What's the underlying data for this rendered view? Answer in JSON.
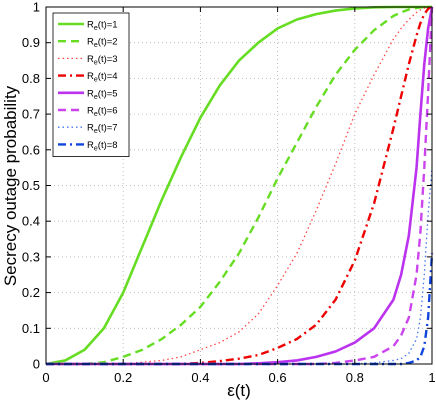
{
  "chart_data": {
    "type": "line",
    "title": "",
    "xlabel": "ε(t)",
    "ylabel": "Secrecy outage probability",
    "xlim": [
      0,
      1
    ],
    "ylim": [
      0,
      1
    ],
    "grid": true,
    "legend_position": "top-left",
    "x_ticks": [
      "0",
      "0.2",
      "0.4",
      "0.6",
      "0.8",
      "1"
    ],
    "y_ticks": [
      "0",
      "0.1",
      "0.2",
      "0.3",
      "0.4",
      "0.5",
      "0.6",
      "0.7",
      "0.8",
      "0.9",
      "1"
    ],
    "x": [
      0,
      0.05,
      0.1,
      0.15,
      0.2,
      0.25,
      0.3,
      0.35,
      0.4,
      0.45,
      0.5,
      0.55,
      0.6,
      0.65,
      0.7,
      0.75,
      0.8,
      0.85,
      0.9,
      0.92,
      0.94,
      0.96,
      0.97,
      0.98,
      0.99,
      1.0
    ],
    "series": [
      {
        "name_main": "R",
        "name_sub": "e",
        "name_rest": "(t)=1",
        "color": "#66dd22",
        "dash": "solid",
        "values": [
          0,
          0.01,
          0.04,
          0.1,
          0.2,
          0.33,
          0.46,
          0.58,
          0.69,
          0.78,
          0.85,
          0.9,
          0.94,
          0.965,
          0.98,
          0.99,
          0.996,
          0.999,
          1,
          1,
          1,
          1,
          1,
          1,
          1,
          1
        ]
      },
      {
        "name_main": "R",
        "name_sub": "e",
        "name_rest": "(t)=2",
        "color": "#66dd22",
        "dash": "dashed",
        "values": [
          0,
          0,
          0,
          0.005,
          0.02,
          0.04,
          0.07,
          0.11,
          0.16,
          0.23,
          0.31,
          0.41,
          0.52,
          0.62,
          0.72,
          0.81,
          0.88,
          0.935,
          0.975,
          0.985,
          0.993,
          0.997,
          0.999,
          1,
          1,
          1
        ]
      },
      {
        "name_main": "R",
        "name_sub": "e",
        "name_rest": "(t)=3",
        "color": "#ff4444",
        "dash": "dotted",
        "values": [
          0,
          0,
          0,
          0,
          0,
          0.005,
          0.01,
          0.02,
          0.04,
          0.06,
          0.09,
          0.14,
          0.22,
          0.31,
          0.43,
          0.56,
          0.7,
          0.81,
          0.91,
          0.94,
          0.965,
          0.985,
          0.992,
          0.997,
          1,
          1
        ]
      },
      {
        "name_main": "R",
        "name_sub": "e",
        "name_rest": "(t)=4",
        "color": "#ee0000",
        "dash": "dashdot",
        "values": [
          0,
          0,
          0,
          0,
          0,
          0,
          0,
          0,
          0.003,
          0.008,
          0.015,
          0.025,
          0.045,
          0.07,
          0.11,
          0.18,
          0.29,
          0.45,
          0.66,
          0.75,
          0.84,
          0.92,
          0.955,
          0.98,
          0.995,
          1
        ]
      },
      {
        "name_main": "R",
        "name_sub": "e",
        "name_rest": "(t)=5",
        "color": "#bb33ee",
        "dash": "solid",
        "values": [
          0,
          0,
          0,
          0,
          0,
          0,
          0,
          0,
          0,
          0,
          0,
          0.002,
          0.005,
          0.01,
          0.02,
          0.035,
          0.06,
          0.1,
          0.18,
          0.25,
          0.36,
          0.55,
          0.7,
          0.84,
          0.94,
          1
        ]
      },
      {
        "name_main": "R",
        "name_sub": "e",
        "name_rest": "(t)=6",
        "color": "#cc44ee",
        "dash": "dashed",
        "values": [
          0,
          0,
          0,
          0,
          0,
          0,
          0,
          0,
          0,
          0,
          0,
          0,
          0,
          0,
          0,
          0.003,
          0.01,
          0.02,
          0.05,
          0.08,
          0.13,
          0.25,
          0.37,
          0.55,
          0.76,
          1
        ]
      },
      {
        "name_main": "R",
        "name_sub": "e",
        "name_rest": "(t)=7",
        "color": "#4477ee",
        "dash": "dotted",
        "values": [
          0,
          0,
          0,
          0,
          0,
          0,
          0,
          0,
          0,
          0,
          0,
          0,
          0,
          0,
          0,
          0,
          0,
          0.003,
          0.01,
          0.015,
          0.03,
          0.07,
          0.13,
          0.25,
          0.42,
          0.55
        ]
      },
      {
        "name_main": "R",
        "name_sub": "e",
        "name_rest": "(t)=8",
        "color": "#1144dd",
        "dash": "dashdot",
        "values": [
          0,
          0,
          0,
          0,
          0,
          0,
          0,
          0,
          0,
          0,
          0,
          0,
          0,
          0,
          0,
          0,
          0,
          0,
          0,
          0,
          0.003,
          0.01,
          0.02,
          0.05,
          0.13,
          0.31
        ]
      }
    ]
  }
}
